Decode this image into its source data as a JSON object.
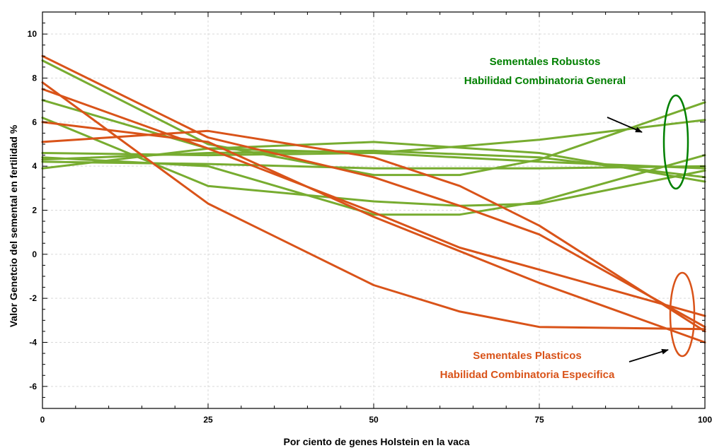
{
  "chart_data": {
    "type": "line",
    "title": "",
    "xlabel": "Por ciento de genes Holstein en la vaca",
    "ylabel": "Valor Genetcio del semental en fertilidad %",
    "xlim": [
      0,
      100
    ],
    "ylim": [
      -7,
      11
    ],
    "x_ticks": [
      0,
      25,
      50,
      75,
      100
    ],
    "x_tick_labels": [
      "0",
      "25",
      "50",
      "75",
      "100"
    ],
    "y_ticks": [
      -6,
      -4,
      -2,
      0,
      2,
      4,
      6,
      8,
      10
    ],
    "y_tick_labels": [
      "-6",
      "-4",
      "-2",
      "0",
      "2",
      "4",
      "6",
      "8",
      "10"
    ],
    "grid": true,
    "colors": {
      "robust": "#77ac30",
      "plastic": "#d95319",
      "robust_text": "#008000",
      "plastic_text": "#d95319"
    },
    "series": [
      {
        "group": "robust",
        "x": [
          0,
          25,
          50,
          63,
          75,
          100
        ],
        "y": [
          8.8,
          5.0,
          3.6,
          3.6,
          4.3,
          6.9
        ]
      },
      {
        "group": "robust",
        "x": [
          0,
          25,
          50,
          75,
          100
        ],
        "y": [
          7.0,
          4.8,
          4.6,
          4.2,
          3.9
        ]
      },
      {
        "group": "robust",
        "x": [
          0,
          25,
          50,
          63,
          75,
          100
        ],
        "y": [
          6.2,
          3.1,
          2.4,
          2.2,
          2.3,
          3.8
        ]
      },
      {
        "group": "robust",
        "x": [
          0,
          25,
          50,
          75,
          100
        ],
        "y": [
          4.2,
          4.1,
          3.9,
          3.9,
          4.0
        ]
      },
      {
        "group": "robust",
        "x": [
          0,
          25,
          50,
          75,
          100
        ],
        "y": [
          3.9,
          4.8,
          5.1,
          4.6,
          3.3
        ]
      },
      {
        "group": "robust",
        "x": [
          0,
          25,
          50,
          63,
          75,
          100
        ],
        "y": [
          4.6,
          4.5,
          4.6,
          4.9,
          5.2,
          6.1
        ]
      },
      {
        "group": "robust",
        "x": [
          0,
          25,
          50,
          63,
          75,
          100
        ],
        "y": [
          4.4,
          4.0,
          1.8,
          1.8,
          2.4,
          4.5
        ]
      },
      {
        "group": "robust",
        "x": [
          0,
          25,
          50,
          75,
          100
        ],
        "y": [
          4.3,
          4.6,
          4.7,
          4.4,
          3.5
        ]
      },
      {
        "group": "plastic",
        "x": [
          0,
          25,
          50,
          63,
          75,
          100
        ],
        "y": [
          9.0,
          5.3,
          3.5,
          2.2,
          0.9,
          -3.3
        ]
      },
      {
        "group": "plastic",
        "x": [
          0,
          25,
          50,
          63,
          75,
          100
        ],
        "y": [
          7.8,
          2.3,
          -1.4,
          -2.6,
          -3.3,
          -3.4
        ]
      },
      {
        "group": "plastic",
        "x": [
          0,
          25,
          50,
          63,
          75,
          100
        ],
        "y": [
          7.5,
          4.8,
          1.9,
          0.3,
          -0.7,
          -2.8
        ]
      },
      {
        "group": "plastic",
        "x": [
          0,
          25,
          50,
          75,
          100
        ],
        "y": [
          6.0,
          5.1,
          1.7,
          -1.3,
          -4.0
        ]
      },
      {
        "group": "plastic",
        "x": [
          0,
          25,
          50,
          63,
          75,
          100
        ],
        "y": [
          5.1,
          5.6,
          4.4,
          3.1,
          1.3,
          -3.5
        ]
      }
    ],
    "annotations": {
      "robust": {
        "line1": "Sementales Robustos",
        "line2": "Habilidad Combinatoria General"
      },
      "plastic": {
        "line1": "Sementales Plasticos",
        "line2": "Habilidad Combinatoria Especifica"
      }
    }
  }
}
